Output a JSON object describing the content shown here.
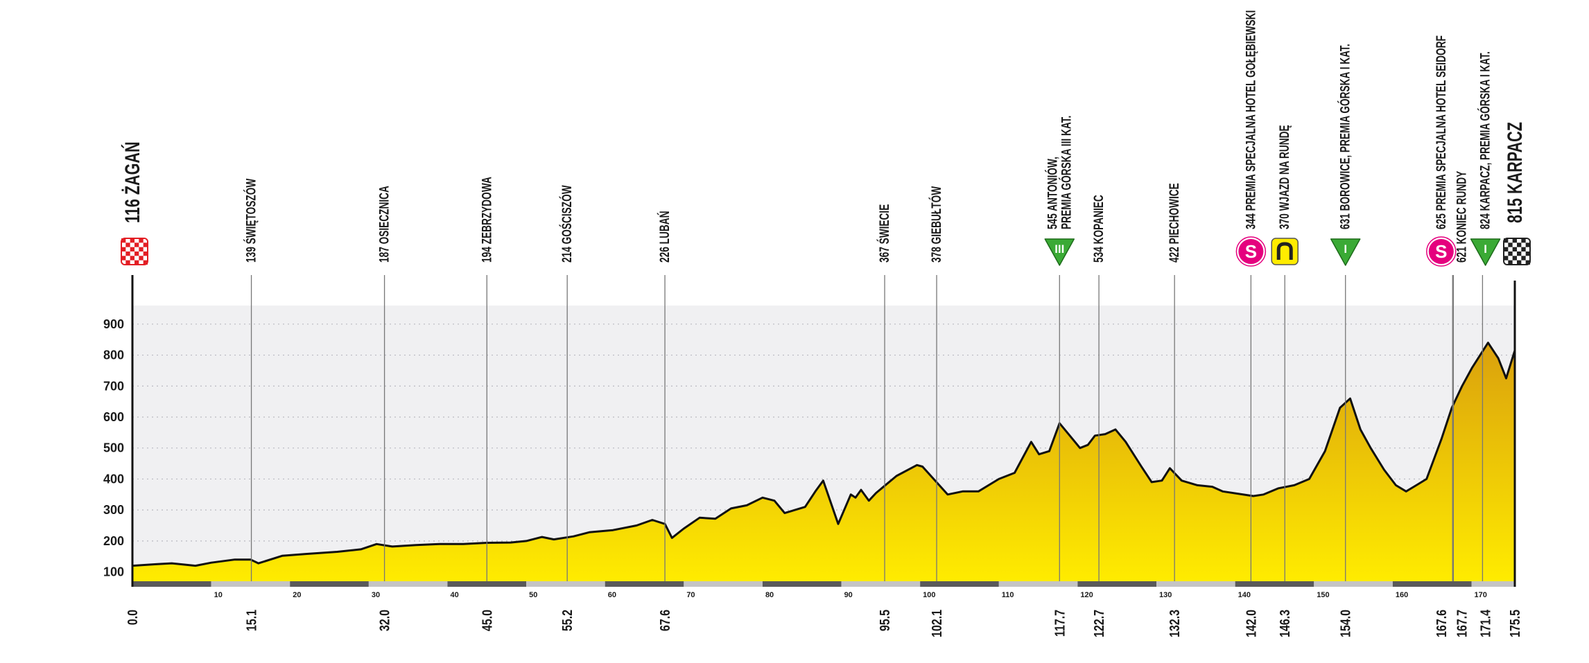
{
  "chart_data": {
    "type": "area",
    "x": [
      0,
      3,
      5,
      8,
      10,
      13,
      15,
      16,
      19,
      22,
      26,
      29,
      31,
      33,
      36,
      39,
      42,
      45,
      48,
      50,
      52,
      53.5,
      56,
      58,
      61,
      64,
      66,
      67.6,
      68.5,
      70,
      72,
      74,
      76,
      78,
      80,
      81.5,
      82.8,
      85.4,
      86.7,
      87.7,
      89.6,
      91.2,
      91.8,
      92.5,
      93.5,
      94.4,
      97,
      99.6,
      100.3,
      103.5,
      105.4,
      107.4,
      110,
      112,
      114.1,
      115.1,
      116.4,
      117.7,
      119,
      120.3,
      121.3,
      122.2,
      123.5,
      124.8,
      126.1,
      128.1,
      129.4,
      130.7,
      131.7,
      133.2,
      135.2,
      137.1,
      138.4,
      142.3,
      143.6,
      145.5,
      147.5,
      149.4,
      151.4,
      153.3,
      154.6,
      155.9,
      157.2,
      158.9,
      160.4,
      161.7,
      163,
      164.3,
      166.2,
      167.5,
      168.8,
      170.1,
      172.1,
      173.4,
      174.4,
      175.5
    ],
    "values": [
      120,
      125,
      128,
      120,
      130,
      140,
      140,
      128,
      152,
      158,
      165,
      173,
      190,
      182,
      187,
      190,
      190,
      194,
      195,
      200,
      213,
      205,
      215,
      228,
      235,
      250,
      268,
      255,
      210,
      240,
      275,
      272,
      305,
      315,
      340,
      330,
      290,
      310,
      360,
      395,
      255,
      350,
      340,
      365,
      330,
      355,
      410,
      445,
      440,
      350,
      360,
      360,
      400,
      420,
      520,
      480,
      490,
      580,
      540,
      500,
      510,
      540,
      545,
      560,
      520,
      440,
      390,
      395,
      435,
      395,
      380,
      375,
      360,
      345,
      350,
      370,
      380,
      400,
      490,
      630,
      660,
      560,
      500,
      430,
      380,
      360,
      380,
      400,
      530,
      630,
      700,
      760,
      840,
      790,
      725,
      815
    ],
    "xlim": [
      0,
      175.5
    ],
    "ylim": [
      70,
      960
    ],
    "yticks": [
      100,
      200,
      300,
      400,
      500,
      600,
      700,
      800,
      900
    ],
    "xticks": [
      10,
      20,
      30,
      40,
      50,
      60,
      70,
      80,
      90,
      100,
      110,
      120,
      130,
      140,
      150,
      160,
      170
    ],
    "grid": true,
    "line_color": "#111111",
    "fill_colors": [
      "#d4940f",
      "#ffec00"
    ],
    "waypoints": [
      {
        "km": {
          "value": 0,
          "label": "0.0"
        },
        "text": [
          "116 ŻAGAŃ"
        ],
        "marker": "checker",
        "marker_color": "#e31e24"
      },
      {
        "km": 15.1,
        "text": [
          "139 ŚWIĘTOSZÓW"
        ]
      },
      {
        "km": {
          "value": 32,
          "label": "32.0"
        },
        "text": [
          "187 OSIECZNICA"
        ]
      },
      {
        "km": {
          "value": 45,
          "label": "45.0"
        },
        "text": [
          "194 ZEBRZYDOWA"
        ]
      },
      {
        "km": 55.2,
        "text": [
          "214 GOŚCISZÓW"
        ]
      },
      {
        "km": 67.6,
        "text": [
          "226 LUBAŃ"
        ]
      },
      {
        "km": 95.5,
        "text": [
          "367 ŚWIECIE"
        ]
      },
      {
        "km": 102.1,
        "text": [
          "378 GIEBUŁTÓW"
        ]
      },
      {
        "km": 117.7,
        "text": [
          "545 ANTONIÓW,",
          "PREMIA GÓRSKA III KAT."
        ],
        "marker": "triangle",
        "marker_text": "III",
        "marker_color": "#3aaa35"
      },
      {
        "km": 122.7,
        "text": [
          "534 KOPANIEC"
        ]
      },
      {
        "km": 132.3,
        "text": [
          "422 PIECHOWICE"
        ]
      },
      {
        "km": {
          "value": 142,
          "label": "142.0"
        },
        "text": [
          "344 PREMIA SPECJALNA HOTEL GOŁĘBIEWSKI"
        ],
        "marker": "circle",
        "marker_text": "S",
        "marker_color": "#e5007e"
      },
      {
        "km": 146.3,
        "text": [
          "370 WJAZD NA RUNDĘ"
        ],
        "marker": "lap",
        "marker_color": "#ffec00"
      },
      {
        "km": {
          "value": 154,
          "label": "154.0"
        },
        "text": [
          "631 BOROWICE, PREMIA GÓRSKA I KAT."
        ],
        "marker": "triangle",
        "marker_text": "I",
        "marker_color": "#3aaa35"
      },
      {
        "km": 167.6,
        "text": [
          "625 PREMIA SPECJALNA HOTEL SEIDORF"
        ],
        "marker": "circle",
        "marker_text": "S",
        "marker_color": "#e5007e"
      },
      {
        "km": 167.7,
        "text": [
          "621 KONIEC RUNDY"
        ]
      },
      {
        "km": 171.4,
        "text": [
          "824 KARPACZ, PREMIA GÓRSKA I KAT."
        ],
        "marker": "triangle",
        "marker_text": "I",
        "marker_color": "#3aaa35"
      },
      {
        "km": 175.5,
        "text": [
          "815 KARPACZ"
        ],
        "marker": "checker",
        "marker_color": "#222222"
      }
    ]
  }
}
